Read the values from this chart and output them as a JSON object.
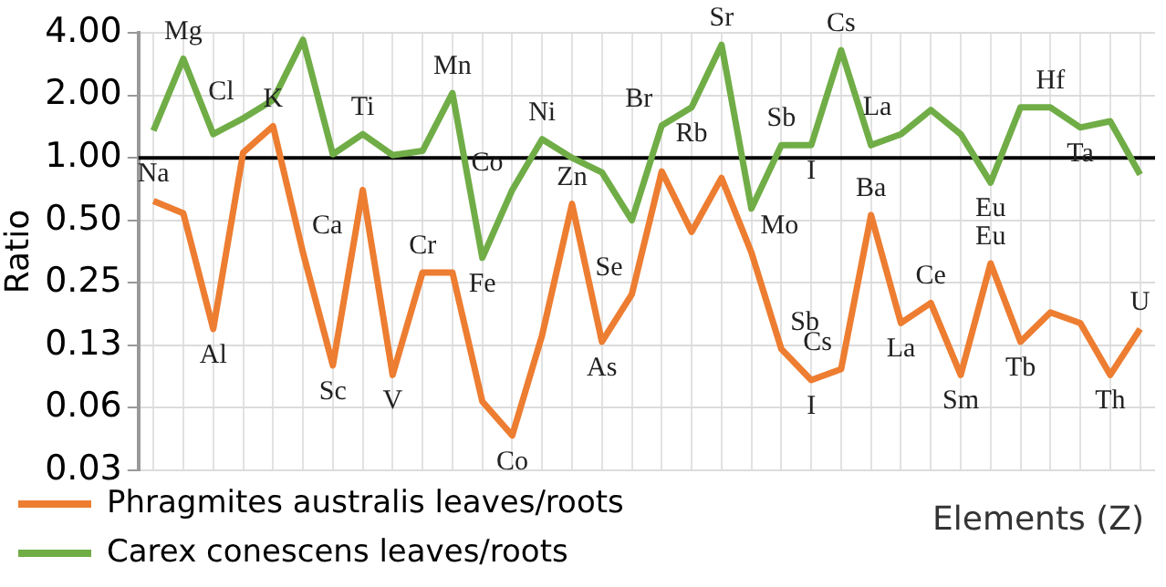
{
  "chart_data": {
    "type": "line",
    "ylabel": "Ratio",
    "xlabel": "Elements (Z)",
    "categories": [
      null,
      null,
      null,
      null,
      null,
      null,
      null,
      null,
      null,
      null,
      null,
      null,
      null,
      null,
      null,
      null,
      null,
      null,
      null,
      null,
      null,
      null,
      null,
      null,
      null,
      null,
      null,
      null,
      null,
      null,
      null,
      null,
      null,
      null
    ],
    "series": [
      {
        "name": "Phragmites australis leaves/roots",
        "color": "#ed7d31",
        "values": [
          0.62,
          0.54,
          0.15,
          1.06,
          1.42,
          0.35,
          0.1,
          0.7,
          0.09,
          0.28,
          0.28,
          0.067,
          0.046,
          0.14,
          0.6,
          0.13,
          0.22,
          0.86,
          0.44,
          0.8,
          0.35,
          0.12,
          0.085,
          0.096,
          0.53,
          0.16,
          0.2,
          0.09,
          0.31,
          0.13,
          0.18,
          0.16,
          0.09,
          0.15
        ],
        "value_labels": [
          "Na",
          null,
          "Al",
          null,
          "K",
          "Ca",
          "Sc",
          null,
          "V",
          "Cr",
          null,
          null,
          "Co",
          null,
          "Zn",
          "As",
          "Se",
          null,
          null,
          null,
          "Mo",
          "Sb",
          "I",
          "Cs",
          "Ba",
          "La",
          "Ce",
          "Sm",
          "Eu",
          "Tb",
          null,
          null,
          "Th",
          "U"
        ]
      },
      {
        "name": "Carex conescens leaves/roots",
        "color": "#70ad47",
        "values": [
          1.35,
          3.0,
          1.3,
          1.55,
          1.9,
          3.7,
          1.04,
          1.3,
          1.03,
          1.08,
          2.05,
          0.33,
          0.7,
          1.23,
          1.0,
          0.85,
          0.5,
          1.43,
          1.75,
          3.5,
          0.57,
          1.15,
          1.15,
          3.3,
          1.15,
          1.3,
          1.7,
          1.3,
          0.76,
          1.75,
          1.75,
          1.4,
          1.5,
          0.83
        ],
        "value_labels": [
          null,
          "Mg",
          null,
          "Cl",
          null,
          null,
          null,
          "Ti",
          null,
          null,
          "Mn",
          "Fe",
          "Co",
          "Ni",
          null,
          null,
          null,
          "Br",
          "Rb",
          "Sr",
          null,
          "Sb",
          "I",
          "Cs",
          null,
          "La",
          null,
          null,
          "Eu",
          null,
          "Hf",
          "Ta",
          null,
          null
        ]
      }
    ],
    "log": "y",
    "ylim": [
      0.03125,
      4
    ],
    "yticks": [
      {
        "value": 0.03125,
        "label": "0.03"
      },
      {
        "value": 0.0625,
        "label": "0.06"
      },
      {
        "value": 0.125,
        "label": "0.13"
      },
      {
        "value": 0.25,
        "label": "0.25"
      },
      {
        "value": 0.5,
        "label": "0.50"
      },
      {
        "value": 1,
        "label": "1.00"
      },
      {
        "value": 2,
        "label": "2.00"
      },
      {
        "value": 4,
        "label": "4.00"
      }
    ],
    "ref_lines": [
      {
        "axis": "y",
        "value": 1,
        "color": "#000000"
      }
    ],
    "grid": true,
    "legend": "bottom left",
    "marker": "none",
    "line_style": "solid",
    "tick_labels": "y"
  }
}
